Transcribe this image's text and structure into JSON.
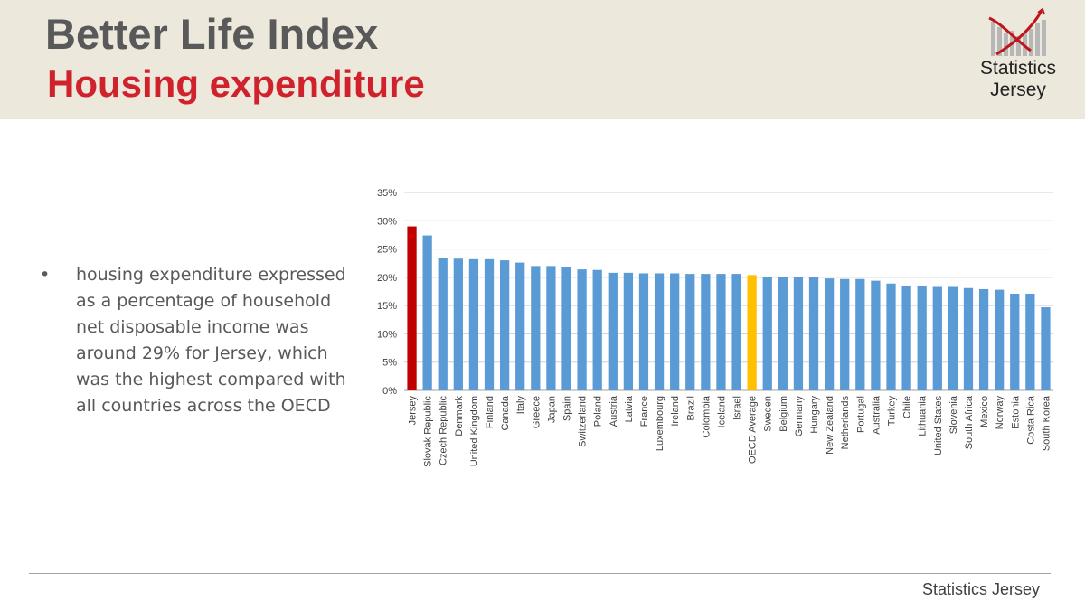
{
  "header": {
    "title": "Better Life Index",
    "subtitle": "Housing expenditure"
  },
  "logo": {
    "line1": "Statistics",
    "line2": "Jersey",
    "accent_color": "#c0141c"
  },
  "bullet": {
    "marker": "•",
    "text": "housing expenditure expressed as a percentage of household net disposable income was around 29% for Jersey, which was the highest compared with all countries across the OECD"
  },
  "footer": {
    "text": "Statistics Jersey"
  },
  "colors": {
    "header_bg": "#ece8dc",
    "title": "#595959",
    "subtitle": "#d0222c",
    "bar_default": "#5b9bd5",
    "bar_jersey": "#c00000",
    "bar_oecd_average": "#ffc000"
  },
  "chart_data": {
    "type": "bar",
    "title": "",
    "xlabel": "",
    "ylabel": "",
    "ylim": [
      0,
      35
    ],
    "yticks": [
      "0%",
      "5%",
      "10%",
      "15%",
      "20%",
      "25%",
      "30%",
      "35%"
    ],
    "grid": true,
    "categories": [
      "Jersey",
      "Slovak Republic",
      "Czech Republic",
      "Denmark",
      "United Kingdom",
      "Finland",
      "Canada",
      "Italy",
      "Greece",
      "Japan",
      "Spain",
      "Switzerland",
      "Poland",
      "Austria",
      "Latvia",
      "France",
      "Luxembourg",
      "Ireland",
      "Brazil",
      "Colombia",
      "Iceland",
      "Israel",
      "OECD Average",
      "Sweden",
      "Belgium",
      "Germany",
      "Hungary",
      "New Zealand",
      "Netherlands",
      "Portugal",
      "Australia",
      "Turkey",
      "Chile",
      "Lithuania",
      "United States",
      "Slovenia",
      "South Africa",
      "Mexico",
      "Norway",
      "Estonia",
      "Costa Rica",
      "South Korea"
    ],
    "values": [
      29.0,
      27.4,
      23.4,
      23.3,
      23.2,
      23.2,
      23.0,
      22.6,
      22.0,
      22.0,
      21.8,
      21.4,
      21.3,
      20.8,
      20.8,
      20.7,
      20.7,
      20.7,
      20.6,
      20.6,
      20.6,
      20.6,
      20.4,
      20.1,
      20.0,
      20.0,
      20.0,
      19.8,
      19.7,
      19.7,
      19.4,
      18.9,
      18.5,
      18.4,
      18.3,
      18.3,
      18.1,
      17.9,
      17.8,
      17.1,
      17.1,
      14.7
    ],
    "highlight": {
      "Jersey": "#c00000",
      "OECD Average": "#ffc000"
    }
  }
}
